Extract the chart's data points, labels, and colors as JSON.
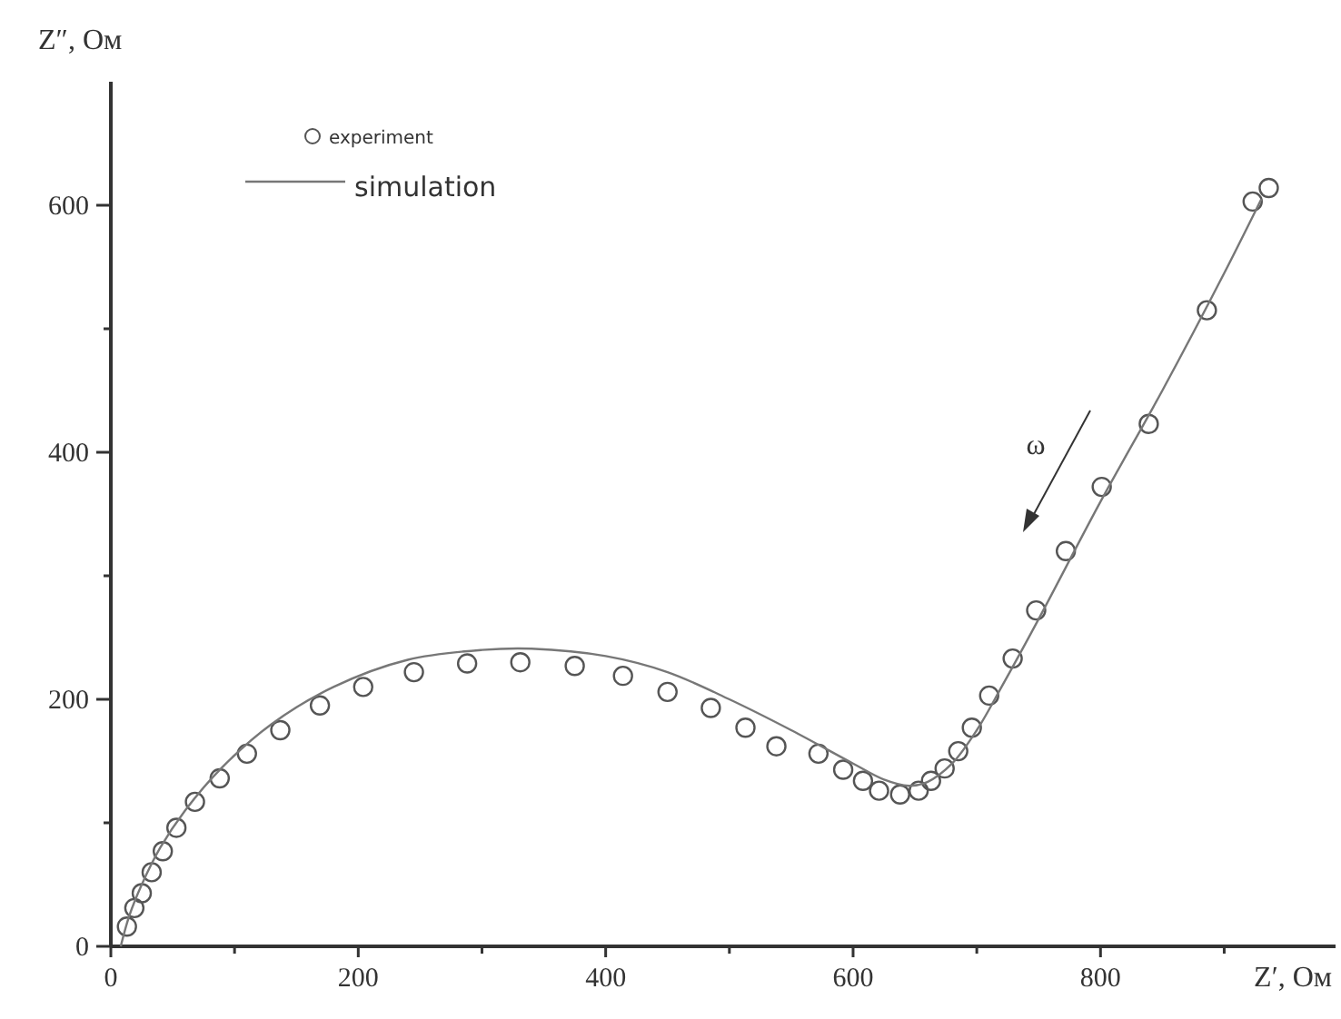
{
  "chart_data": {
    "type": "scatter",
    "xlabel": "Z′, Ом",
    "ylabel": "Z″, Ом",
    "xlim": [
      0,
      990
    ],
    "ylim": [
      0,
      700
    ],
    "xticks": [
      0,
      {
        "value": 100,
        "label": null
      },
      200,
      {
        "value": 300,
        "label": null
      },
      400,
      {
        "value": 500,
        "label": null
      },
      600,
      {
        "value": 700,
        "label": null
      },
      800,
      {
        "value": 900,
        "label": null
      }
    ],
    "yticks": [
      0,
      {
        "value": 100,
        "label": null
      },
      200,
      {
        "value": 300,
        "label": null
      },
      400,
      {
        "value": 500,
        "label": null
      },
      600
    ],
    "grid": false,
    "legend": "top left",
    "annotations": [
      "ω"
    ],
    "series": [
      {
        "name": "experiment",
        "marker": "circle",
        "color": "#555555",
        "x": [
          13,
          19,
          25,
          33,
          42,
          53,
          68,
          88,
          110,
          137,
          169,
          204,
          245,
          288,
          331,
          375,
          414,
          450,
          485,
          513,
          538,
          572,
          592,
          608,
          621,
          638,
          653,
          663,
          674,
          685,
          696,
          710,
          729,
          748,
          772,
          801,
          839,
          886,
          923,
          936
        ],
        "values": [
          16,
          31,
          43,
          60,
          77,
          96,
          117,
          136,
          156,
          175,
          195,
          210,
          222,
          229,
          230,
          227,
          219,
          206,
          193,
          177,
          162,
          156,
          143,
          134,
          126,
          123,
          126,
          134,
          144,
          158,
          177,
          203,
          233,
          272,
          320,
          372,
          423,
          515,
          603,
          614
        ]
      },
      {
        "name": "simulation",
        "type": "line",
        "marker": "none",
        "color": "#777777",
        "x": [
          8,
          15,
          25,
          40,
          60,
          90,
          130,
          180,
          240,
          300,
          340,
          400,
          450,
          500,
          550,
          600,
          625,
          645,
          660,
          680,
          700,
          720,
          750,
          800,
          850,
          900,
          930
        ],
        "values": [
          0,
          25,
          50,
          80,
          110,
          145,
          180,
          210,
          232,
          240,
          241,
          235,
          222,
          200,
          175,
          148,
          135,
          130,
          133,
          148,
          175,
          210,
          265,
          360,
          450,
          545,
          605
        ]
      }
    ]
  }
}
